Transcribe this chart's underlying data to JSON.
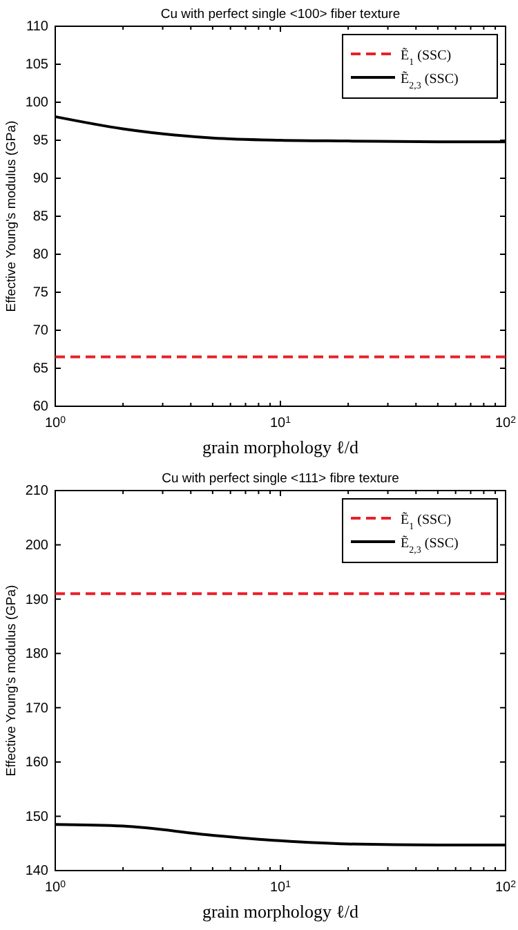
{
  "chart_data": [
    {
      "type": "line",
      "title": "Cu with perfect single <100> fiber texture",
      "xlabel": "grain morphology ℓ/d",
      "ylabel": "Effective Young's modulus (GPa)",
      "log": "x",
      "legend": "top right",
      "grid": false,
      "xlim": [
        1,
        100
      ],
      "xticks": [
        {
          "value": 1,
          "label": "10$^{0}$"
        },
        {
          "value": 2,
          "label": null
        },
        {
          "value": 3,
          "label": null
        },
        {
          "value": 4,
          "label": null
        },
        {
          "value": 5,
          "label": null
        },
        {
          "value": 6,
          "label": null
        },
        {
          "value": 7,
          "label": null
        },
        {
          "value": 8,
          "label": null
        },
        {
          "value": 9,
          "label": null
        },
        {
          "value": 10,
          "label": "10$^{1}$"
        },
        {
          "value": 20,
          "label": null
        },
        {
          "value": 30,
          "label": null
        },
        {
          "value": 40,
          "label": null
        },
        {
          "value": 50,
          "label": null
        },
        {
          "value": 60,
          "label": null
        },
        {
          "value": 70,
          "label": null
        },
        {
          "value": 80,
          "label": null
        },
        {
          "value": 90,
          "label": null
        },
        {
          "value": 100,
          "label": "10$^{2}$"
        }
      ],
      "ylim": [
        60,
        110
      ],
      "yticks": [
        60,
        65,
        70,
        75,
        80,
        85,
        90,
        95,
        100,
        105,
        110
      ],
      "series": [
        {
          "name": "Ẽ$_{1}$ (SSC)",
          "color": "#e8202a",
          "line_style": "dashed",
          "x": [
            1,
            100
          ],
          "values": [
            66.5,
            66.5
          ]
        },
        {
          "name": "Ẽ$_{2,3}$ (SSC)",
          "color": "#000000",
          "line_style": "solid",
          "x": [
            1,
            2,
            5,
            10,
            20,
            50,
            100
          ],
          "values": [
            98.1,
            96.5,
            95.3,
            95.0,
            94.9,
            94.8,
            94.8
          ]
        }
      ]
    },
    {
      "type": "line",
      "title": "Cu with perfect single <111> fibre texture",
      "xlabel": "grain morphology ℓ/d",
      "ylabel": "Effective Young's modulus (GPa)",
      "log": "x",
      "legend": "top right",
      "grid": false,
      "xlim": [
        1,
        100
      ],
      "xticks": [
        {
          "value": 1,
          "label": "10$^{0}$"
        },
        {
          "value": 2,
          "label": null
        },
        {
          "value": 3,
          "label": null
        },
        {
          "value": 4,
          "label": null
        },
        {
          "value": 5,
          "label": null
        },
        {
          "value": 6,
          "label": null
        },
        {
          "value": 7,
          "label": null
        },
        {
          "value": 8,
          "label": null
        },
        {
          "value": 9,
          "label": null
        },
        {
          "value": 10,
          "label": "10$^{1}$"
        },
        {
          "value": 20,
          "label": null
        },
        {
          "value": 30,
          "label": null
        },
        {
          "value": 40,
          "label": null
        },
        {
          "value": 50,
          "label": null
        },
        {
          "value": 60,
          "label": null
        },
        {
          "value": 70,
          "label": null
        },
        {
          "value": 80,
          "label": null
        },
        {
          "value": 90,
          "label": null
        },
        {
          "value": 100,
          "label": "10$^{2}$"
        }
      ],
      "ylim": [
        140,
        210
      ],
      "yticks": [
        140,
        150,
        160,
        170,
        180,
        190,
        200,
        210
      ],
      "series": [
        {
          "name": "Ẽ$_{1}$ (SSC)",
          "color": "#e8202a",
          "line_style": "dashed",
          "x": [
            1,
            100
          ],
          "values": [
            191,
            191
          ]
        },
        {
          "name": "Ẽ$_{2,3}$ (SSC)",
          "color": "#000000",
          "line_style": "solid",
          "x": [
            1,
            2,
            5,
            10,
            20,
            50,
            100
          ],
          "values": [
            148.5,
            148.2,
            146.5,
            145.5,
            144.9,
            144.7,
            144.7
          ]
        }
      ]
    }
  ]
}
